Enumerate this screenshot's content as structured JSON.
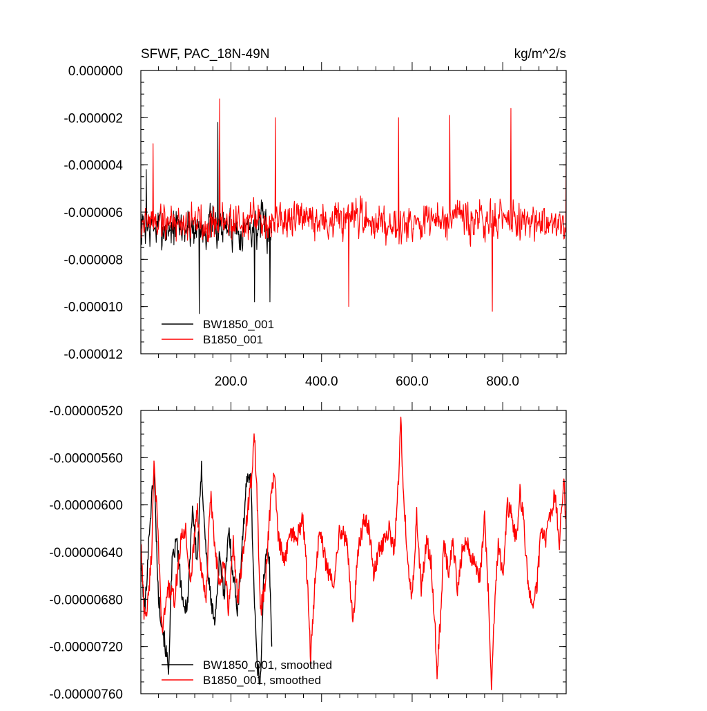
{
  "chart_data": [
    {
      "type": "line",
      "title": "SFWF, PAC_18N-49N",
      "units": "kg/m^2/s",
      "xlabel": "",
      "ylabel": "",
      "xlim": [
        1,
        940
      ],
      "ylim": [
        -1.2e-05,
        0.0
      ],
      "x_ticks": [
        200,
        400,
        600,
        800
      ],
      "x_tick_labels": [
        "200.0",
        "400.0",
        "600.0",
        "800.0"
      ],
      "y_ticks": [
        0.0,
        -2e-06,
        -4e-06,
        -6e-06,
        -8e-06,
        -1e-05,
        -1.2e-05
      ],
      "y_tick_labels": [
        "0.000000",
        "-0.000002",
        "-0.000004",
        "-0.000006",
        "-0.000008",
        "-0.000010",
        "-0.000012"
      ],
      "grid": false,
      "legend_position": "bottom-left",
      "series": [
        {
          "name": "BW1850_001",
          "color": "#000000",
          "x_start": 1,
          "x_end": 290,
          "mean": -6.65e-06,
          "amplitude": 1.2e-06,
          "seed": 7,
          "extremes": [
            {
              "x": 13,
              "y": -4.2e-06
            },
            {
              "x": 130,
              "y": -1.03e-05
            },
            {
              "x": 171,
              "y": -2.2e-06
            },
            {
              "x": 252,
              "y": -9.8e-06
            },
            {
              "x": 286,
              "y": -9.8e-06
            }
          ]
        },
        {
          "name": "B1850_001",
          "color": "#ff0000",
          "x_start": 1,
          "x_end": 940,
          "mean": -6.4e-06,
          "amplitude": 1.1e-06,
          "seed": 19,
          "extremes": [
            {
              "x": 28,
              "y": -3.1e-06
            },
            {
              "x": 175,
              "y": -1.2e-06
            },
            {
              "x": 298,
              "y": -2e-06
            },
            {
              "x": 460,
              "y": -1e-05
            },
            {
              "x": 570,
              "y": -2e-06
            },
            {
              "x": 683,
              "y": -1.9e-06
            },
            {
              "x": 777,
              "y": -1.02e-05
            },
            {
              "x": 818,
              "y": -1.6e-06
            },
            {
              "x": 940,
              "y": -3.6e-06
            }
          ]
        }
      ]
    },
    {
      "type": "line",
      "title": "",
      "xlabel": "",
      "ylabel": "",
      "xlim": [
        1,
        940
      ],
      "ylim": [
        -7.6e-06,
        -5.2e-06
      ],
      "x_ticks": [
        200,
        400,
        600,
        800
      ],
      "y_ticks": [
        -5.2e-06,
        -5.6e-06,
        -6e-06,
        -6.4e-06,
        -6.8e-06,
        -7.2e-06,
        -7.6e-06
      ],
      "y_tick_labels": [
        "-0.00000520",
        "-0.00000560",
        "-0.00000600",
        "-0.00000640",
        "-0.00000680",
        "-0.00000720",
        "-0.00000760"
      ],
      "grid": false,
      "legend_position": "bottom-left",
      "series": [
        {
          "name": "BW1850_001, smoothed",
          "color": "#000000",
          "points": [
            [
              1,
              -6.5e-06
            ],
            [
              10,
              -6.9e-06
            ],
            [
              20,
              -6.2e-06
            ],
            [
              30,
              -5.7e-06
            ],
            [
              40,
              -6.8e-06
            ],
            [
              55,
              -7.2e-06
            ],
            [
              62,
              -7.4e-06
            ],
            [
              70,
              -6.5e-06
            ],
            [
              80,
              -6.3e-06
            ],
            [
              95,
              -6.9e-06
            ],
            [
              105,
              -6.8e-06
            ],
            [
              115,
              -6e-06
            ],
            [
              125,
              -6.5e-06
            ],
            [
              135,
              -5.7e-06
            ],
            [
              145,
              -6.4e-06
            ],
            [
              155,
              -6.8e-06
            ],
            [
              165,
              -7e-06
            ],
            [
              175,
              -6.4e-06
            ],
            [
              185,
              -6.8e-06
            ],
            [
              195,
              -6.2e-06
            ],
            [
              205,
              -6.6e-06
            ],
            [
              215,
              -6.9e-06
            ],
            [
              225,
              -6.3e-06
            ],
            [
              235,
              -5.8e-06
            ],
            [
              243,
              -5.7e-06
            ],
            [
              250,
              -6.6e-06
            ],
            [
              258,
              -7.4e-06
            ],
            [
              265,
              -7.5e-06
            ],
            [
              272,
              -6.6e-06
            ],
            [
              280,
              -6.4e-06
            ],
            [
              285,
              -6.5e-06
            ],
            [
              290,
              -7.2e-06
            ]
          ]
        },
        {
          "name": "B1850_001, smoothed",
          "color": "#ff0000",
          "points": [
            [
              1,
              -6.3e-06
            ],
            [
              8,
              -6.9e-06
            ],
            [
              15,
              -6.9e-06
            ],
            [
              25,
              -6.4e-06
            ],
            [
              30,
              -5.6e-06
            ],
            [
              38,
              -6.2e-06
            ],
            [
              48,
              -7.1e-06
            ],
            [
              60,
              -6.7e-06
            ],
            [
              75,
              -6.8e-06
            ],
            [
              90,
              -6.3e-06
            ],
            [
              100,
              -6.2e-06
            ],
            [
              110,
              -6.7e-06
            ],
            [
              125,
              -6e-06
            ],
            [
              135,
              -6.6e-06
            ],
            [
              145,
              -6.8e-06
            ],
            [
              155,
              -5.9e-06
            ],
            [
              165,
              -6.4e-06
            ],
            [
              175,
              -6.7e-06
            ],
            [
              185,
              -6.5e-06
            ],
            [
              195,
              -6.9e-06
            ],
            [
              205,
              -6.3e-06
            ],
            [
              215,
              -6.8e-06
            ],
            [
              225,
              -6.5e-06
            ],
            [
              235,
              -6.1e-06
            ],
            [
              245,
              -5.8e-06
            ],
            [
              252,
              -5.4e-06
            ],
            [
              258,
              -6e-06
            ],
            [
              265,
              -6.9e-06
            ],
            [
              275,
              -6.7e-06
            ],
            [
              285,
              -6.1e-06
            ],
            [
              295,
              -5.7e-06
            ],
            [
              305,
              -6.3e-06
            ],
            [
              318,
              -6.5e-06
            ],
            [
              330,
              -6.2e-06
            ],
            [
              345,
              -6.3e-06
            ],
            [
              358,
              -6.1e-06
            ],
            [
              368,
              -6.6e-06
            ],
            [
              376,
              -7.3e-06
            ],
            [
              385,
              -6.7e-06
            ],
            [
              395,
              -6.2e-06
            ],
            [
              410,
              -6.5e-06
            ],
            [
              425,
              -6.7e-06
            ],
            [
              440,
              -6.2e-06
            ],
            [
              455,
              -6.3e-06
            ],
            [
              470,
              -7e-06
            ],
            [
              480,
              -6.4e-06
            ],
            [
              495,
              -6.1e-06
            ],
            [
              505,
              -6.2e-06
            ],
            [
              515,
              -6.6e-06
            ],
            [
              525,
              -6.4e-06
            ],
            [
              540,
              -6.3e-06
            ],
            [
              550,
              -6.2e-06
            ],
            [
              560,
              -6.4e-06
            ],
            [
              570,
              -5.8e-06
            ],
            [
              575,
              -5.3e-06
            ],
            [
              580,
              -5.8e-06
            ],
            [
              590,
              -6.5e-06
            ],
            [
              600,
              -6.8e-06
            ],
            [
              610,
              -6.1e-06
            ],
            [
              620,
              -6.7e-06
            ],
            [
              632,
              -6.3e-06
            ],
            [
              642,
              -6.5e-06
            ],
            [
              650,
              -7e-06
            ],
            [
              655,
              -7.4e-06
            ],
            [
              662,
              -7e-06
            ],
            [
              670,
              -6.3e-06
            ],
            [
              680,
              -6.6e-06
            ],
            [
              690,
              -6.3e-06
            ],
            [
              700,
              -6.7e-06
            ],
            [
              710,
              -6.4e-06
            ],
            [
              720,
              -6.3e-06
            ],
            [
              735,
              -6.5e-06
            ],
            [
              750,
              -6.6e-06
            ],
            [
              760,
              -6.1e-06
            ],
            [
              770,
              -6.9e-06
            ],
            [
              775,
              -7.5e-06
            ],
            [
              782,
              -6.9e-06
            ],
            [
              790,
              -6.3e-06
            ],
            [
              800,
              -6.6e-06
            ],
            [
              810,
              -6e-06
            ],
            [
              820,
              -6.1e-06
            ],
            [
              830,
              -6.3e-06
            ],
            [
              838,
              -5.9e-06
            ],
            [
              845,
              -6.1e-06
            ],
            [
              855,
              -6.6e-06
            ],
            [
              865,
              -6.9e-06
            ],
            [
              875,
              -6.7e-06
            ],
            [
              885,
              -6.2e-06
            ],
            [
              895,
              -6.3e-06
            ],
            [
              905,
              -6.1e-06
            ],
            [
              915,
              -5.9e-06
            ],
            [
              925,
              -6.3e-06
            ],
            [
              935,
              -5.8e-06
            ],
            [
              940,
              -6.2e-06
            ]
          ]
        }
      ]
    }
  ]
}
